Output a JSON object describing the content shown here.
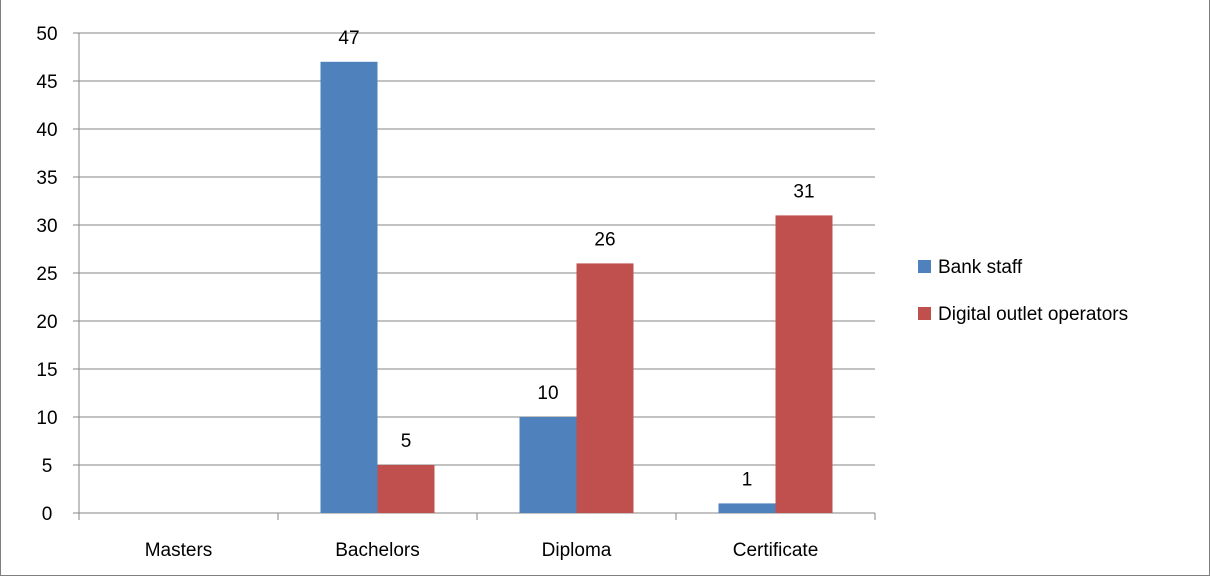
{
  "chart_data": {
    "type": "bar",
    "categories": [
      "Masters",
      "Bachelors",
      "Diploma",
      "Certificate"
    ],
    "series": [
      {
        "name": "Bank staff",
        "values": [
          0,
          47,
          10,
          1
        ],
        "labels": [
          "",
          "47",
          "10",
          "1"
        ],
        "color": "#4F81BD"
      },
      {
        "name": "Digital outlet operators",
        "values": [
          0,
          5,
          26,
          31
        ],
        "labels": [
          "",
          "5",
          "26",
          "31"
        ],
        "color": "#C0504D"
      }
    ],
    "ylim": [
      0,
      50
    ],
    "yticks": [
      0,
      5,
      10,
      15,
      20,
      25,
      30,
      35,
      40,
      45,
      50
    ],
    "grid": true,
    "legend_position": "right",
    "title": "",
    "xlabel": "",
    "ylabel": ""
  }
}
